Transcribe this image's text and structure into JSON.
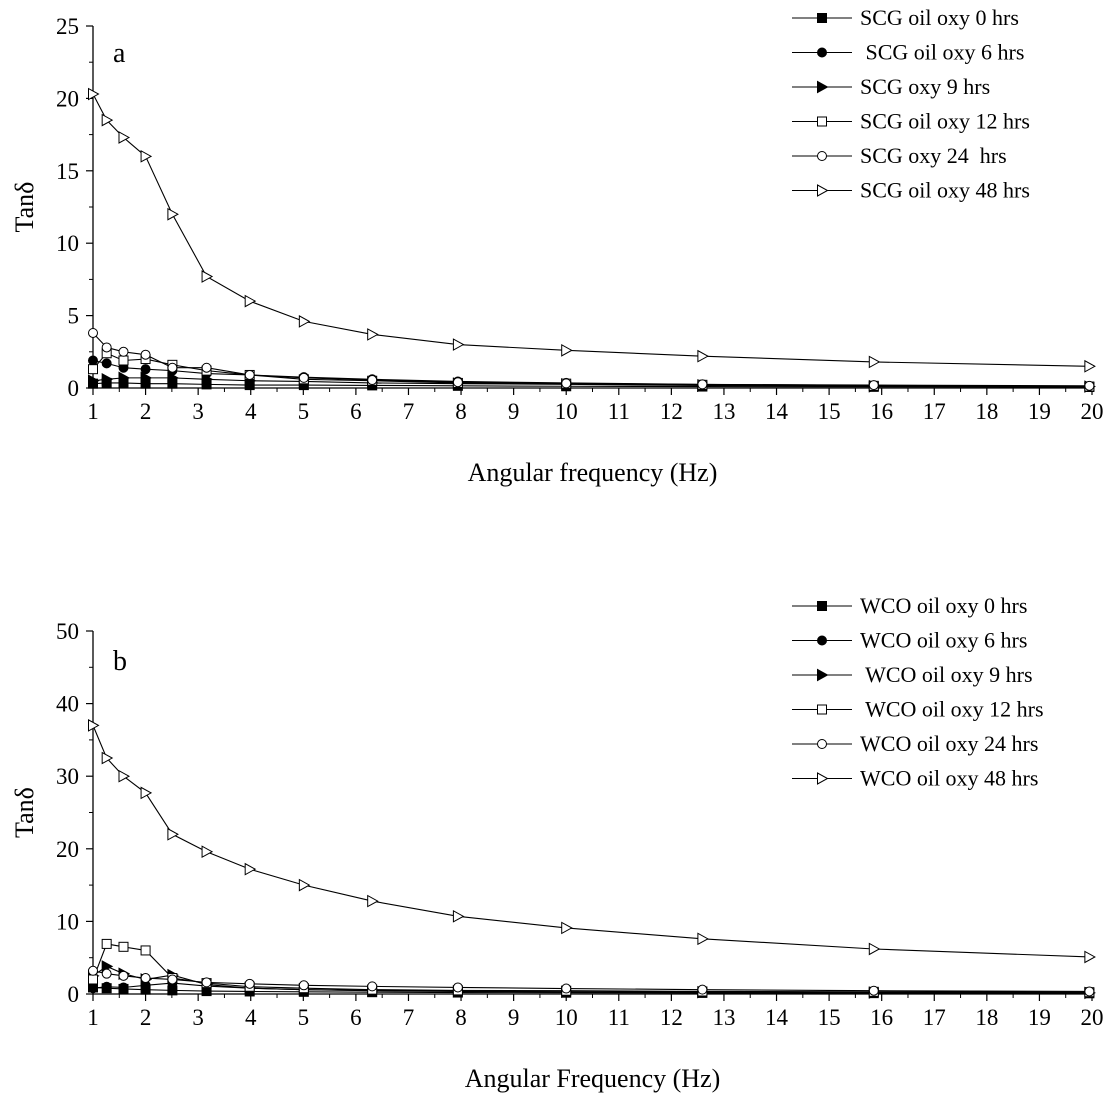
{
  "chart_data": [
    {
      "type": "line",
      "panel_label": "a",
      "xlabel": "Angular frequency (Hz)",
      "ylabel": "Tanδ",
      "xlim": [
        1,
        20
      ],
      "ylim": [
        0,
        25
      ],
      "x_ticks": [
        1,
        2,
        3,
        4,
        5,
        6,
        7,
        8,
        9,
        10,
        11,
        12,
        13,
        14,
        15,
        16,
        17,
        18,
        19,
        20
      ],
      "y_ticks": [
        0,
        5,
        10,
        15,
        20,
        25
      ],
      "legend_position": "top-right",
      "x": [
        1,
        1.26,
        1.58,
        2,
        2.51,
        3.16,
        3.98,
        5.01,
        6.31,
        7.94,
        10,
        12.59,
        15.85,
        19.95
      ],
      "series": [
        {
          "name": "SCG oil oxy 0 hrs",
          "marker": "filled-square",
          "values": [
            0.3,
            0.35,
            0.35,
            0.3,
            0.3,
            0.25,
            0.2,
            0.2,
            0.18,
            0.15,
            0.12,
            0.1,
            0.08,
            0.07
          ]
        },
        {
          "name": " SCG oil oxy 6 hrs",
          "marker": "filled-circle",
          "values": [
            1.9,
            1.7,
            1.4,
            1.3,
            1.2,
            1.0,
            0.9,
            0.75,
            0.6,
            0.45,
            0.35,
            0.25,
            0.18,
            0.12
          ]
        },
        {
          "name": "SCG oxy 9 hrs",
          "marker": "filled-right-triangle",
          "values": [
            0.5,
            0.6,
            0.7,
            0.7,
            0.7,
            0.6,
            0.5,
            0.45,
            0.35,
            0.3,
            0.25,
            0.18,
            0.12,
            0.1
          ]
        },
        {
          "name": "SCG oil oxy 12 hrs",
          "marker": "open-square",
          "values": [
            1.3,
            2.4,
            1.9,
            2.0,
            1.6,
            1.2,
            0.9,
            0.6,
            0.5,
            0.35,
            0.3,
            0.22,
            0.15,
            0.1
          ]
        },
        {
          "name": "SCG oxy 24  hrs",
          "marker": "open-circle",
          "values": [
            3.8,
            2.8,
            2.5,
            2.3,
            1.4,
            1.4,
            0.9,
            0.7,
            0.55,
            0.4,
            0.32,
            0.25,
            0.2,
            0.15
          ]
        },
        {
          "name": "SCG oil oxy 48 hrs",
          "marker": "open-right-triangle",
          "values": [
            20.3,
            18.5,
            17.3,
            16.0,
            12.0,
            7.7,
            6.0,
            4.6,
            3.7,
            3.0,
            2.6,
            2.2,
            1.8,
            1.5
          ]
        }
      ]
    },
    {
      "type": "line",
      "panel_label": "b",
      "xlabel": "Angular Frequency (Hz)",
      "ylabel": "Tanδ",
      "xlim": [
        1,
        20
      ],
      "ylim": [
        0,
        50
      ],
      "x_ticks": [
        1,
        2,
        3,
        4,
        5,
        6,
        7,
        8,
        9,
        10,
        11,
        12,
        13,
        14,
        15,
        16,
        17,
        18,
        19,
        20
      ],
      "y_ticks": [
        0,
        10,
        20,
        30,
        40,
        50
      ],
      "legend_position": "top-right",
      "x": [
        1,
        1.26,
        1.58,
        2,
        2.51,
        3.16,
        3.98,
        5.01,
        6.31,
        7.94,
        10,
        12.59,
        15.85,
        19.95
      ],
      "series": [
        {
          "name": "WCO oil oxy 0 hrs",
          "marker": "filled-square",
          "values": [
            0.9,
            0.8,
            0.7,
            0.6,
            0.5,
            0.4,
            0.35,
            0.3,
            0.25,
            0.2,
            0.18,
            0.15,
            0.12,
            0.1
          ]
        },
        {
          "name": "WCO oil oxy 6 hrs",
          "marker": "filled-circle",
          "values": [
            0.8,
            1.0,
            0.9,
            1.2,
            1.5,
            1.1,
            0.8,
            0.6,
            0.5,
            0.4,
            0.3,
            0.25,
            0.2,
            0.15
          ]
        },
        {
          "name": " WCO oil oxy 9 hrs",
          "marker": "filled-right-triangle",
          "values": [
            2.5,
            3.8,
            2.8,
            2.0,
            2.6,
            1.3,
            0.8,
            0.6,
            0.45,
            0.35,
            0.3,
            0.25,
            0.2,
            0.15
          ]
        },
        {
          "name": " WCO oil oxy 12 hrs",
          "marker": "open-square",
          "values": [
            2.0,
            6.9,
            6.5,
            6.0,
            2.2,
            1.5,
            1.0,
            0.8,
            0.6,
            0.5,
            0.45,
            0.35,
            0.3,
            0.25
          ]
        },
        {
          "name": "WCO oil oxy 24 hrs",
          "marker": "open-circle",
          "values": [
            3.2,
            2.8,
            2.5,
            2.2,
            2.0,
            1.6,
            1.4,
            1.2,
            1.05,
            0.9,
            0.75,
            0.6,
            0.45,
            0.35
          ]
        },
        {
          "name": "WCO oil oxy 48 hrs",
          "marker": "open-right-triangle",
          "values": [
            37,
            32.5,
            30.0,
            27.7,
            22.0,
            19.6,
            17.2,
            15.0,
            12.8,
            10.7,
            9.1,
            7.6,
            6.2,
            5.1
          ]
        }
      ]
    }
  ]
}
